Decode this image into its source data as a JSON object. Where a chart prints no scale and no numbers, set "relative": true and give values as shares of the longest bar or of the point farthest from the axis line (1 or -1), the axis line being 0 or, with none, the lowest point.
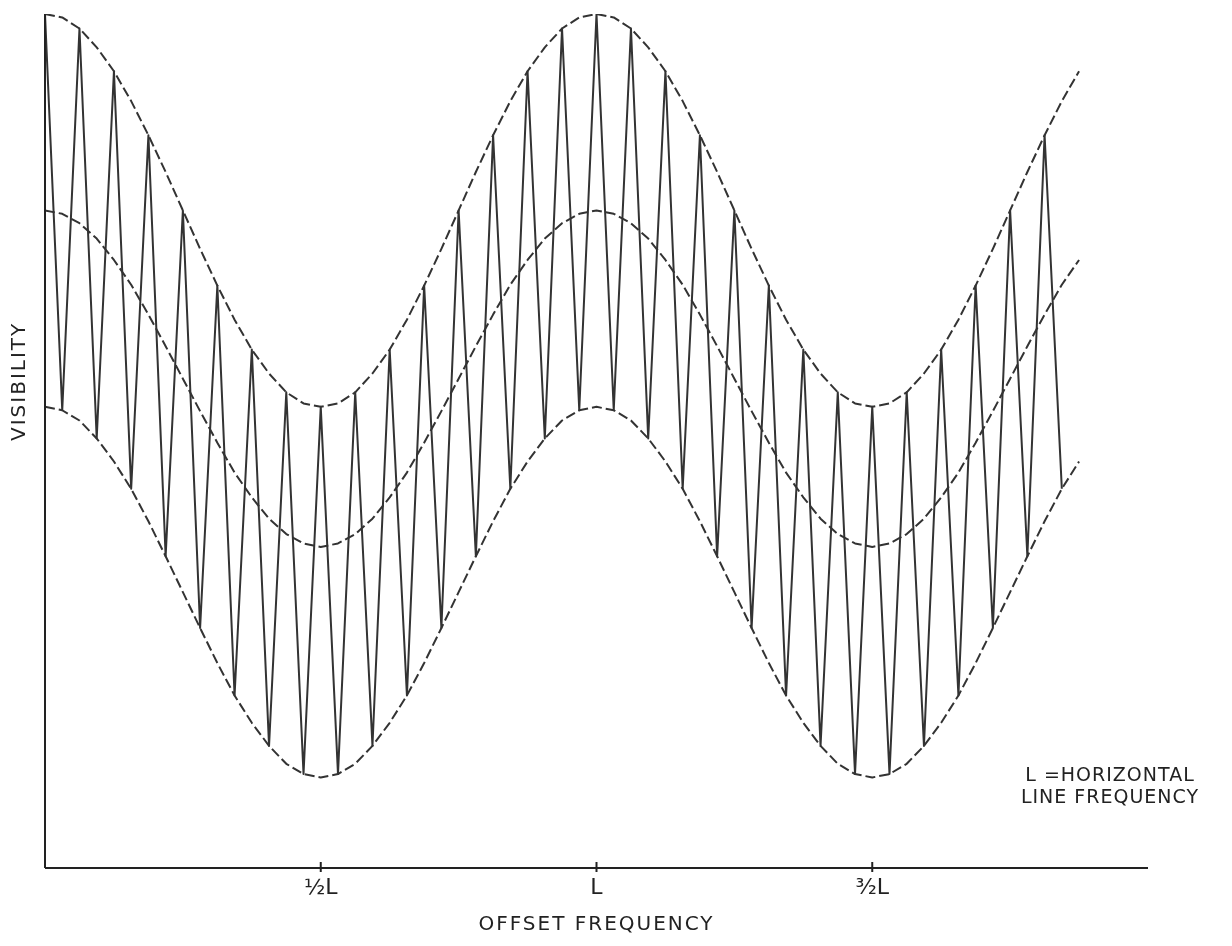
{
  "chart_data": {
    "type": "line",
    "relative": true,
    "xlabel": "OFFSET FREQUENCY",
    "ylabel": "VISIBILITY",
    "grid": false,
    "legend": false,
    "marker": "none",
    "annotations": [
      "L =HORIZONTAL LINE FREQUENCY"
    ],
    "categories": [
      null,
      null,
      null,
      null,
      null,
      null,
      null,
      null,
      null,
      null,
      null,
      null,
      null,
      null,
      null,
      null,
      "½L",
      null,
      null,
      null,
      null,
      null,
      null,
      null,
      null,
      null,
      null,
      null,
      null,
      null,
      null,
      null,
      "L",
      null,
      null,
      null,
      null,
      null,
      null,
      null,
      null,
      null,
      null,
      null,
      null,
      null,
      null,
      null,
      "³⁄₂L",
      null,
      null,
      null,
      null,
      null,
      null,
      null,
      null,
      null,
      null,
      null,
      null,
      null,
      null,
      null,
      null
    ],
    "series": [
      {
        "color": "#333333",
        "line_style": "solid",
        "values": [
          1,
          0.536,
          0.983,
          0.503,
          0.933,
          0.444,
          0.858,
          0.365,
          0.77,
          0.281,
          0.682,
          0.202,
          0.607,
          0.143,
          0.557,
          0.11,
          0.54,
          0.11,
          0.557,
          0.143,
          0.607,
          0.202,
          0.682,
          0.281,
          0.77,
          0.365,
          0.858,
          0.444,
          0.933,
          0.503,
          0.983,
          0.536,
          1,
          0.536,
          0.983,
          0.503,
          0.933,
          0.444,
          0.858,
          0.365,
          0.77,
          0.281,
          0.682,
          0.202,
          0.607,
          0.143,
          0.557,
          0.11,
          0.54,
          0.11,
          0.557,
          0.143,
          0.607,
          0.202,
          0.682,
          0.281,
          0.77,
          0.365,
          0.858,
          0.444,
          null,
          null,
          null,
          null,
          null
        ]
      },
      {
        "color": "#333333",
        "line_style": "dashed",
        "values": [
          1,
          0.996,
          0.983,
          0.961,
          0.933,
          0.898,
          0.858,
          0.815,
          0.77,
          0.725,
          0.682,
          0.642,
          0.607,
          0.579,
          0.557,
          0.544,
          0.54,
          0.544,
          0.557,
          0.579,
          0.607,
          0.642,
          0.682,
          0.725,
          0.77,
          0.815,
          0.858,
          0.898,
          0.933,
          0.961,
          0.983,
          0.996,
          1,
          0.996,
          0.983,
          0.961,
          0.933,
          0.898,
          0.858,
          0.815,
          0.77,
          0.725,
          0.682,
          0.642,
          0.607,
          0.579,
          0.557,
          0.544,
          0.54,
          0.544,
          0.557,
          0.579,
          0.607,
          0.642,
          0.682,
          0.725,
          0.77,
          0.815,
          0.858,
          0.898,
          0.933,
          null,
          null,
          null,
          null
        ]
      },
      {
        "color": "#333333",
        "line_style": "dashed",
        "values": [
          0.77,
          0.766,
          0.755,
          0.737,
          0.712,
          0.683,
          0.648,
          0.611,
          0.573,
          0.535,
          0.498,
          0.463,
          0.434,
          0.409,
          0.391,
          0.38,
          0.376,
          0.38,
          0.391,
          0.409,
          0.434,
          0.463,
          0.498,
          0.535,
          0.573,
          0.611,
          0.648,
          0.683,
          0.712,
          0.737,
          0.755,
          0.766,
          0.77,
          0.766,
          0.755,
          0.737,
          0.712,
          0.683,
          0.648,
          0.611,
          0.573,
          0.535,
          0.498,
          0.463,
          0.434,
          0.409,
          0.391,
          0.38,
          0.376,
          0.38,
          0.391,
          0.409,
          0.434,
          0.463,
          0.498,
          0.535,
          0.573,
          0.611,
          0.648,
          0.683,
          0.712,
          null,
          null,
          null,
          null
        ]
      },
      {
        "color": "#333333",
        "line_style": "dashed",
        "values": [
          0.54,
          0.536,
          0.524,
          0.503,
          0.476,
          0.444,
          0.406,
          0.365,
          0.323,
          0.281,
          0.24,
          0.202,
          0.17,
          0.143,
          0.122,
          0.11,
          0.106,
          0.11,
          0.122,
          0.143,
          0.17,
          0.202,
          0.24,
          0.281,
          0.323,
          0.365,
          0.406,
          0.444,
          0.476,
          0.503,
          0.524,
          0.536,
          0.54,
          0.536,
          0.524,
          0.503,
          0.476,
          0.444,
          0.406,
          0.365,
          0.323,
          0.281,
          0.24,
          0.202,
          0.17,
          0.143,
          0.122,
          0.11,
          0.106,
          0.11,
          0.122,
          0.143,
          0.17,
          0.202,
          0.24,
          0.281,
          0.323,
          0.365,
          0.406,
          0.444,
          0.476,
          null,
          null,
          null,
          null
        ]
      }
    ]
  }
}
